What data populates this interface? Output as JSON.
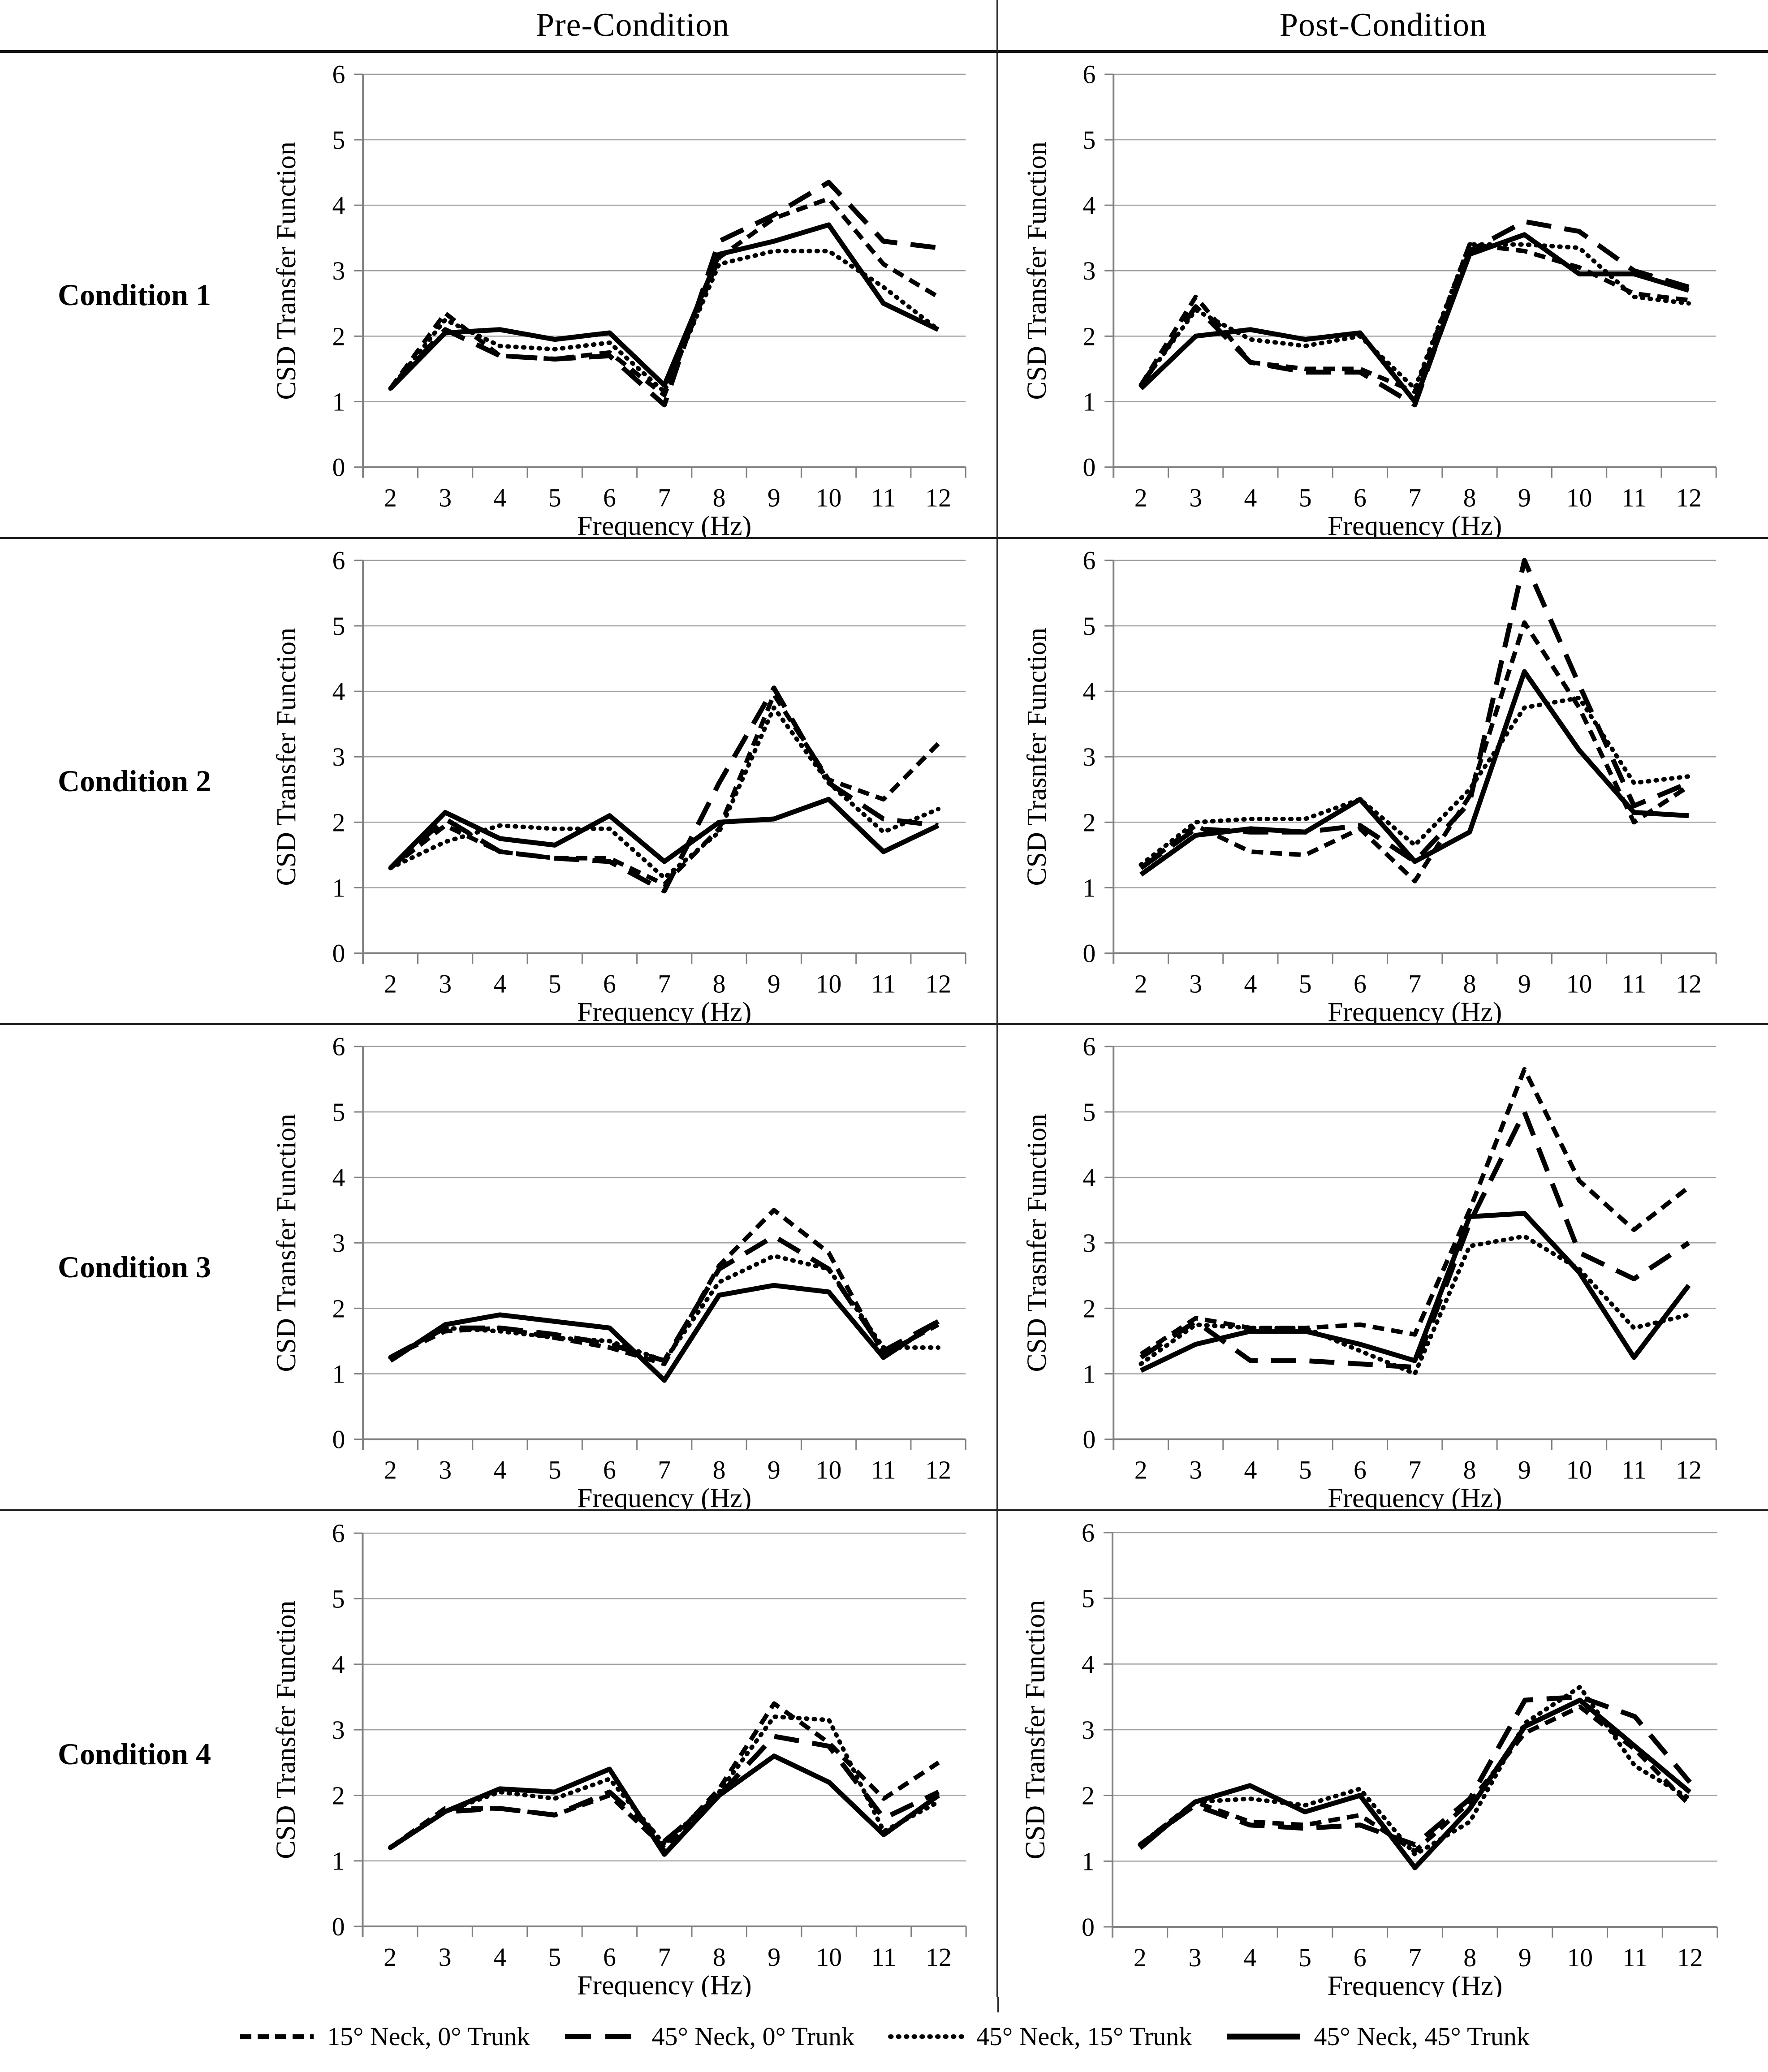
{
  "header": {
    "left_title": "Pre-Condition",
    "right_title": "Post-Condition"
  },
  "rows": [
    {
      "label": "Condition 1"
    },
    {
      "label": "Condition 2"
    },
    {
      "label": "Condition 3"
    },
    {
      "label": "Condition 4"
    }
  ],
  "axes": {
    "xlabel": "Frequency (Hz)",
    "x_ticks": [
      2,
      3,
      4,
      5,
      6,
      7,
      8,
      9,
      10,
      11,
      12
    ],
    "y_ticks": [
      0,
      1,
      2,
      3,
      4,
      5,
      6
    ],
    "ylim": [
      0,
      6
    ],
    "grid": "horizontal-on"
  },
  "legend": [
    {
      "label": "15° Neck, 0° Trunk",
      "style": "dashed"
    },
    {
      "label": "45° Neck, 0° Trunk",
      "style": "longdash"
    },
    {
      "label": "45° Neck, 15° Trunk",
      "style": "dotted"
    },
    {
      "label": "45° Neck, 45° Trunk",
      "style": "solid"
    }
  ],
  "line_colors": {
    "series": "#000000",
    "gridline": "#a0a0a0",
    "axis": "#808080"
  },
  "chart_data": [
    {
      "type": "line",
      "row": "Condition 1",
      "column": "Pre-Condition",
      "ylabel": "CSD Transfer Function",
      "xlabel": "Frequency (Hz)",
      "x": [
        2,
        3,
        4,
        5,
        6,
        7,
        8,
        9,
        10,
        11,
        12
      ],
      "ylim": [
        0,
        6
      ],
      "series": [
        {
          "name": "15° Neck, 0° Trunk",
          "style": "dashed",
          "values": [
            1.2,
            2.35,
            1.7,
            1.65,
            1.75,
            1.1,
            3.2,
            3.8,
            4.1,
            3.1,
            2.6
          ]
        },
        {
          "name": "45° Neck, 0° Trunk",
          "style": "longdash",
          "values": [
            1.2,
            2.1,
            1.7,
            1.65,
            1.7,
            0.95,
            3.45,
            3.85,
            4.35,
            3.45,
            3.35
          ]
        },
        {
          "name": "45° Neck, 15° Trunk",
          "style": "dotted",
          "values": [
            1.2,
            2.25,
            1.85,
            1.8,
            1.9,
            1.15,
            3.1,
            3.3,
            3.3,
            2.75,
            2.1
          ]
        },
        {
          "name": "45° Neck, 45° Trunk",
          "style": "solid",
          "values": [
            1.2,
            2.05,
            2.1,
            1.95,
            2.05,
            1.25,
            3.25,
            3.45,
            3.7,
            2.5,
            2.1
          ]
        }
      ]
    },
    {
      "type": "line",
      "row": "Condition 1",
      "column": "Post-Condition",
      "ylabel": "CSD Transfer Function",
      "xlabel": "Frequency (Hz)",
      "x": [
        2,
        3,
        4,
        5,
        6,
        7,
        8,
        9,
        10,
        11,
        12
      ],
      "ylim": [
        0,
        6
      ],
      "series": [
        {
          "name": "15° Neck, 0° Trunk",
          "style": "dashed",
          "values": [
            1.25,
            2.6,
            1.6,
            1.5,
            1.5,
            1.15,
            3.4,
            3.3,
            3.05,
            2.65,
            2.55
          ]
        },
        {
          "name": "45° Neck, 0° Trunk",
          "style": "longdash",
          "values": [
            1.25,
            2.45,
            1.6,
            1.45,
            1.45,
            0.95,
            3.3,
            3.75,
            3.6,
            3.0,
            2.75
          ]
        },
        {
          "name": "45° Neck, 15° Trunk",
          "style": "dotted",
          "values": [
            1.25,
            2.4,
            1.95,
            1.85,
            2.0,
            1.2,
            3.4,
            3.4,
            3.35,
            2.6,
            2.5
          ]
        },
        {
          "name": "45° Neck, 45° Trunk",
          "style": "solid",
          "values": [
            1.2,
            2.0,
            2.1,
            1.95,
            2.05,
            1.0,
            3.25,
            3.55,
            2.95,
            2.95,
            2.7
          ]
        }
      ]
    },
    {
      "type": "line",
      "row": "Condition 2",
      "column": "Pre-Condition",
      "ylabel": "CSD Transfer Function",
      "xlabel": "Frequency (Hz)",
      "x": [
        2,
        3,
        4,
        5,
        6,
        7,
        8,
        9,
        10,
        11,
        12
      ],
      "ylim": [
        0,
        6
      ],
      "series": [
        {
          "name": "15° Neck, 0° Trunk",
          "style": "dashed",
          "values": [
            1.3,
            1.95,
            1.55,
            1.45,
            1.45,
            1.05,
            1.9,
            3.95,
            2.65,
            2.35,
            3.2
          ]
        },
        {
          "name": "45° Neck, 0° Trunk",
          "style": "longdash",
          "values": [
            1.3,
            2.05,
            1.55,
            1.45,
            1.4,
            0.95,
            2.6,
            4.05,
            2.6,
            2.05,
            1.95
          ]
        },
        {
          "name": "45° Neck, 15° Trunk",
          "style": "dotted",
          "values": [
            1.3,
            1.7,
            1.95,
            1.9,
            1.9,
            1.15,
            1.85,
            3.75,
            2.6,
            1.85,
            2.2
          ]
        },
        {
          "name": "45° Neck, 45° Trunk",
          "style": "solid",
          "values": [
            1.3,
            2.15,
            1.75,
            1.65,
            2.1,
            1.4,
            2.0,
            2.05,
            2.35,
            1.55,
            1.95
          ]
        }
      ]
    },
    {
      "type": "line",
      "row": "Condition 2",
      "column": "Post-Condition",
      "ylabel": "CSD Trasnfer Function",
      "xlabel": "Frequency (Hz)",
      "x": [
        2,
        3,
        4,
        5,
        6,
        7,
        8,
        9,
        10,
        11,
        12
      ],
      "ylim": [
        0,
        6
      ],
      "series": [
        {
          "name": "15° Neck, 0° Trunk",
          "style": "dashed",
          "values": [
            1.3,
            1.95,
            1.55,
            1.5,
            1.9,
            1.1,
            2.4,
            5.05,
            3.75,
            2.0,
            2.55
          ]
        },
        {
          "name": "45° Neck, 0° Trunk",
          "style": "longdash",
          "values": [
            1.3,
            1.9,
            1.85,
            1.85,
            1.95,
            1.4,
            2.3,
            6.0,
            4.1,
            2.25,
            2.6
          ]
        },
        {
          "name": "45° Neck, 15° Trunk",
          "style": "dotted",
          "values": [
            1.35,
            2.0,
            2.05,
            2.05,
            2.35,
            1.65,
            2.5,
            3.75,
            3.9,
            2.6,
            2.7
          ]
        },
        {
          "name": "45° Neck, 45° Trunk",
          "style": "solid",
          "values": [
            1.2,
            1.8,
            1.9,
            1.85,
            2.35,
            1.4,
            1.85,
            4.3,
            3.1,
            2.15,
            2.1
          ]
        }
      ]
    },
    {
      "type": "line",
      "row": "Condition 3",
      "column": "Pre-Condition",
      "ylabel": "CSD Transfer Function",
      "xlabel": "Frequency (Hz)",
      "x": [
        2,
        3,
        4,
        5,
        6,
        7,
        8,
        9,
        10,
        11,
        12
      ],
      "ylim": [
        0,
        6
      ],
      "series": [
        {
          "name": "15° Neck, 0° Trunk",
          "style": "dashed",
          "values": [
            1.25,
            1.65,
            1.7,
            1.55,
            1.4,
            1.15,
            2.65,
            3.5,
            2.85,
            1.3,
            1.75
          ]
        },
        {
          "name": "45° Neck, 0° Trunk",
          "style": "longdash",
          "values": [
            1.25,
            1.7,
            1.7,
            1.6,
            1.45,
            1.2,
            2.6,
            3.1,
            2.6,
            1.35,
            1.8
          ]
        },
        {
          "name": "45° Neck, 15° Trunk",
          "style": "dotted",
          "values": [
            1.25,
            1.7,
            1.65,
            1.55,
            1.5,
            1.2,
            2.4,
            2.8,
            2.6,
            1.4,
            1.4
          ]
        },
        {
          "name": "45° Neck, 45° Trunk",
          "style": "solid",
          "values": [
            1.2,
            1.75,
            1.9,
            1.8,
            1.7,
            0.9,
            2.2,
            2.35,
            2.25,
            1.25,
            1.8
          ]
        }
      ]
    },
    {
      "type": "line",
      "row": "Condition 3",
      "column": "Post-Condition",
      "ylabel": "CSD Trasnfer Function",
      "xlabel": "Frequency (Hz)",
      "x": [
        2,
        3,
        4,
        5,
        6,
        7,
        8,
        9,
        10,
        11,
        12
      ],
      "ylim": [
        0,
        6
      ],
      "series": [
        {
          "name": "15° Neck, 0° Trunk",
          "style": "dashed",
          "values": [
            1.3,
            1.85,
            1.7,
            1.7,
            1.75,
            1.6,
            3.5,
            5.65,
            3.95,
            3.2,
            3.85
          ]
        },
        {
          "name": "45° Neck, 0° Trunk",
          "style": "longdash",
          "values": [
            1.25,
            1.8,
            1.2,
            1.2,
            1.15,
            1.1,
            3.3,
            5.0,
            2.85,
            2.45,
            3.0
          ]
        },
        {
          "name": "45° Neck, 15° Trunk",
          "style": "dotted",
          "values": [
            1.15,
            1.75,
            1.7,
            1.7,
            1.35,
            1.0,
            2.95,
            3.1,
            2.6,
            1.7,
            1.9
          ]
        },
        {
          "name": "45° Neck, 45° Trunk",
          "style": "solid",
          "values": [
            1.05,
            1.45,
            1.65,
            1.65,
            1.45,
            1.2,
            3.4,
            3.45,
            2.55,
            1.25,
            2.35
          ]
        }
      ]
    },
    {
      "type": "line",
      "row": "Condition 4",
      "column": "Pre-Condition",
      "ylabel": "CSD Transfer Function",
      "xlabel": "Frequency (Hz)",
      "x": [
        2,
        3,
        4,
        5,
        6,
        7,
        8,
        9,
        10,
        11,
        12
      ],
      "ylim": [
        0,
        6
      ],
      "series": [
        {
          "name": "15° Neck, 0° Trunk",
          "style": "dashed",
          "values": [
            1.2,
            1.8,
            1.8,
            1.7,
            2.0,
            1.2,
            2.1,
            3.4,
            2.8,
            1.95,
            2.5
          ]
        },
        {
          "name": "45° Neck, 0° Trunk",
          "style": "longdash",
          "values": [
            1.2,
            1.75,
            1.8,
            1.7,
            2.05,
            1.3,
            2.0,
            2.9,
            2.75,
            1.65,
            2.05
          ]
        },
        {
          "name": "45° Neck, 15° Trunk",
          "style": "dotted",
          "values": [
            1.2,
            1.75,
            2.05,
            1.95,
            2.25,
            1.25,
            2.05,
            3.2,
            3.15,
            1.45,
            1.9
          ]
        },
        {
          "name": "45° Neck, 45° Trunk",
          "style": "solid",
          "values": [
            1.2,
            1.75,
            2.1,
            2.05,
            2.4,
            1.1,
            2.0,
            2.6,
            2.2,
            1.4,
            2.0
          ]
        }
      ]
    },
    {
      "type": "line",
      "row": "Condition 4",
      "column": "Post-Condition",
      "ylabel": "CSD Transfer Function",
      "xlabel": "Frequency (Hz)",
      "x": [
        2,
        3,
        4,
        5,
        6,
        7,
        8,
        9,
        10,
        11,
        12
      ],
      "ylim": [
        0,
        6
      ],
      "series": [
        {
          "name": "15° Neck, 0° Trunk",
          "style": "dashed",
          "values": [
            1.25,
            1.9,
            1.6,
            1.55,
            1.7,
            1.15,
            1.9,
            2.95,
            3.35,
            2.7,
            1.85
          ]
        },
        {
          "name": "45° Neck, 0° Trunk",
          "style": "longdash",
          "values": [
            1.25,
            1.85,
            1.55,
            1.5,
            1.55,
            1.25,
            1.95,
            3.45,
            3.5,
            3.2,
            2.2
          ]
        },
        {
          "name": "45° Neck, 15° Trunk",
          "style": "dotted",
          "values": [
            1.25,
            1.9,
            1.95,
            1.85,
            2.1,
            1.1,
            1.6,
            3.1,
            3.65,
            2.45,
            1.95
          ]
        },
        {
          "name": "45° Neck, 45° Trunk",
          "style": "solid",
          "values": [
            1.2,
            1.9,
            2.15,
            1.75,
            2.0,
            0.9,
            1.8,
            3.05,
            3.45,
            2.75,
            2.05
          ]
        }
      ]
    }
  ]
}
